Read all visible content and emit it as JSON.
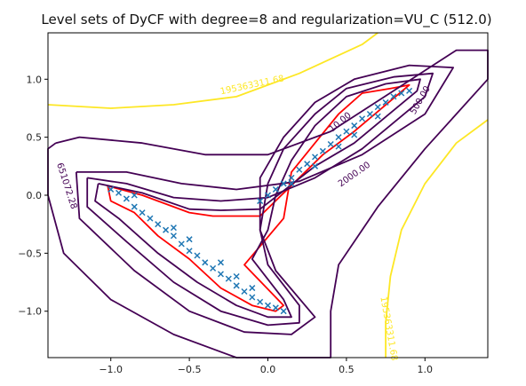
{
  "chart_data": {
    "type": "scatter",
    "title": "Level sets of DyCF with degree=8 and regularization=VU_C (512.0)",
    "xlabel": "",
    "ylabel": "",
    "xlim": [
      -1.4,
      1.4
    ],
    "ylim": [
      -1.4,
      1.4
    ],
    "x_ticks": [
      "−1.0",
      "−0.5",
      "0.0",
      "0.5",
      "1.0"
    ],
    "y_ticks": [
      "1.0",
      "0.5",
      "0.0",
      "−0.5",
      "−1.0"
    ],
    "grid": false,
    "legend": "none",
    "scatter": {
      "marker": "x",
      "color": "#1f77b4",
      "description": "dense cloud of points along a boomerang shape: lower arm from (-1.0, 0.05) to (0.1, -1.0), upper arm from (0.0, 0.0) to (0.9, 0.9)",
      "points": [
        [
          -1.0,
          0.05
        ],
        [
          -0.95,
          0.02
        ],
        [
          -0.9,
          -0.03
        ],
        [
          -0.85,
          -0.1
        ],
        [
          -0.8,
          -0.15
        ],
        [
          -0.75,
          -0.2
        ],
        [
          -0.7,
          -0.25
        ],
        [
          -0.65,
          -0.3
        ],
        [
          -0.6,
          -0.35
        ],
        [
          -0.55,
          -0.42
        ],
        [
          -0.5,
          -0.48
        ],
        [
          -0.45,
          -0.52
        ],
        [
          -0.4,
          -0.58
        ],
        [
          -0.35,
          -0.63
        ],
        [
          -0.3,
          -0.68
        ],
        [
          -0.25,
          -0.72
        ],
        [
          -0.2,
          -0.78
        ],
        [
          -0.15,
          -0.83
        ],
        [
          -0.1,
          -0.88
        ],
        [
          -0.05,
          -0.92
        ],
        [
          0.0,
          -0.95
        ],
        [
          0.05,
          -0.97
        ],
        [
          0.1,
          -1.0
        ],
        [
          -0.85,
          0.0
        ],
        [
          -0.6,
          -0.28
        ],
        [
          -0.5,
          -0.38
        ],
        [
          -0.3,
          -0.58
        ],
        [
          -0.2,
          -0.7
        ],
        [
          -0.1,
          -0.8
        ],
        [
          0.0,
          0.0
        ],
        [
          0.05,
          0.05
        ],
        [
          0.1,
          0.1
        ],
        [
          0.15,
          0.15
        ],
        [
          0.2,
          0.22
        ],
        [
          0.25,
          0.27
        ],
        [
          0.3,
          0.33
        ],
        [
          0.35,
          0.38
        ],
        [
          0.4,
          0.44
        ],
        [
          0.45,
          0.5
        ],
        [
          0.5,
          0.55
        ],
        [
          0.55,
          0.6
        ],
        [
          0.6,
          0.66
        ],
        [
          0.65,
          0.7
        ],
        [
          0.7,
          0.76
        ],
        [
          0.75,
          0.8
        ],
        [
          0.8,
          0.85
        ],
        [
          0.85,
          0.88
        ],
        [
          0.9,
          0.9
        ],
        [
          -0.05,
          -0.05
        ],
        [
          0.15,
          0.1
        ],
        [
          0.3,
          0.25
        ],
        [
          0.45,
          0.42
        ],
        [
          0.55,
          0.52
        ],
        [
          0.7,
          0.68
        ]
      ]
    },
    "contours": [
      {
        "level_label": "10.00",
        "color": "#ff0000",
        "path": [
          [
            -1.02,
            0.08
          ],
          [
            -0.8,
            0.0
          ],
          [
            -0.5,
            -0.15
          ],
          [
            -0.35,
            -0.18
          ],
          [
            -0.05,
            -0.18
          ],
          [
            0.35,
            0.35
          ],
          [
            0.55,
            0.55
          ],
          [
            0.9,
            0.95
          ],
          [
            0.78,
            0.92
          ],
          [
            0.6,
            0.88
          ],
          [
            0.45,
            0.7
          ],
          [
            0.3,
            0.45
          ],
          [
            0.15,
            0.2
          ],
          [
            0.1,
            -0.2
          ],
          [
            -0.15,
            -0.6
          ],
          [
            0.1,
            -0.95
          ],
          [
            0.05,
            -1.0
          ],
          [
            -0.1,
            -0.95
          ],
          [
            -0.3,
            -0.8
          ],
          [
            -0.5,
            -0.55
          ],
          [
            -0.7,
            -0.35
          ],
          [
            -0.85,
            -0.15
          ],
          [
            -1.0,
            -0.05
          ],
          [
            -1.02,
            0.08
          ]
        ]
      },
      {
        "level_label": "500.00",
        "color": "#440154",
        "path": [
          [
            -1.08,
            0.1
          ],
          [
            -0.8,
            0.02
          ],
          [
            -0.5,
            -0.12
          ],
          [
            -0.3,
            -0.13
          ],
          [
            -0.05,
            -0.12
          ],
          [
            0.3,
            0.25
          ],
          [
            0.55,
            0.45
          ],
          [
            0.95,
            0.9
          ],
          [
            0.97,
            1.0
          ],
          [
            0.75,
            0.96
          ],
          [
            0.5,
            0.85
          ],
          [
            0.3,
            0.6
          ],
          [
            0.15,
            0.3
          ],
          [
            0.05,
            0.0
          ],
          [
            0.0,
            -0.3
          ],
          [
            -0.1,
            -0.55
          ],
          [
            0.1,
            -0.9
          ],
          [
            0.15,
            -1.05
          ],
          [
            0.0,
            -1.05
          ],
          [
            -0.2,
            -0.95
          ],
          [
            -0.45,
            -0.75
          ],
          [
            -0.7,
            -0.5
          ],
          [
            -0.95,
            -0.2
          ],
          [
            -1.1,
            -0.05
          ],
          [
            -1.08,
            0.1
          ]
        ]
      },
      {
        "level_label": "2000.00",
        "color": "#440154",
        "path": [
          [
            -1.15,
            0.15
          ],
          [
            -0.9,
            0.1
          ],
          [
            -0.6,
            -0.02
          ],
          [
            -0.3,
            -0.05
          ],
          [
            0.0,
            -0.02
          ],
          [
            0.3,
            0.15
          ],
          [
            0.6,
            0.4
          ],
          [
            1.0,
            0.85
          ],
          [
            1.05,
            1.05
          ],
          [
            0.8,
            1.02
          ],
          [
            0.5,
            0.92
          ],
          [
            0.3,
            0.7
          ],
          [
            0.1,
            0.4
          ],
          [
            0.0,
            0.1
          ],
          [
            -0.05,
            -0.3
          ],
          [
            0.0,
            -0.6
          ],
          [
            0.2,
            -0.95
          ],
          [
            0.2,
            -1.1
          ],
          [
            0.0,
            -1.12
          ],
          [
            -0.3,
            -1.0
          ],
          [
            -0.6,
            -0.75
          ],
          [
            -0.9,
            -0.4
          ],
          [
            -1.15,
            -0.1
          ],
          [
            -1.15,
            0.15
          ]
        ]
      },
      {
        "level_label": "",
        "color": "#440154",
        "path": [
          [
            -1.22,
            0.2
          ],
          [
            -0.9,
            0.2
          ],
          [
            -0.55,
            0.1
          ],
          [
            -0.2,
            0.05
          ],
          [
            0.2,
            0.12
          ],
          [
            0.6,
            0.35
          ],
          [
            1.0,
            0.7
          ],
          [
            1.18,
            1.1
          ],
          [
            0.9,
            1.12
          ],
          [
            0.55,
            1.0
          ],
          [
            0.3,
            0.8
          ],
          [
            0.1,
            0.5
          ],
          [
            -0.05,
            0.15
          ],
          [
            -0.05,
            -0.3
          ],
          [
            0.05,
            -0.65
          ],
          [
            0.3,
            -1.05
          ],
          [
            0.15,
            -1.2
          ],
          [
            -0.15,
            -1.18
          ],
          [
            -0.5,
            -1.0
          ],
          [
            -0.85,
            -0.65
          ],
          [
            -1.2,
            -0.2
          ],
          [
            -1.22,
            0.2
          ]
        ]
      },
      {
        "level_label": "651072.28",
        "color": "#440154",
        "path": [
          [
            -1.35,
            0.45
          ],
          [
            -1.2,
            0.5
          ],
          [
            -0.8,
            0.45
          ],
          [
            -0.4,
            0.35
          ],
          [
            0.0,
            0.35
          ],
          [
            0.4,
            0.55
          ],
          [
            0.8,
            0.9
          ],
          [
            1.2,
            1.25
          ],
          [
            1.4,
            1.25
          ],
          [
            1.4,
            1.0
          ],
          [
            1.0,
            0.4
          ],
          [
            0.7,
            -0.1
          ],
          [
            0.45,
            -0.6
          ],
          [
            0.4,
            -1.0
          ],
          [
            0.4,
            -1.4
          ],
          [
            -0.2,
            -1.4
          ],
          [
            -0.6,
            -1.2
          ],
          [
            -1.0,
            -0.9
          ],
          [
            -1.3,
            -0.5
          ],
          [
            -1.4,
            0.0
          ],
          [
            -1.4,
            0.4
          ],
          [
            -1.35,
            0.45
          ]
        ]
      },
      {
        "level_label": "195363311.68",
        "color": "#fde725",
        "path": [
          [
            -1.4,
            0.78
          ],
          [
            -1.0,
            0.75
          ],
          [
            -0.6,
            0.78
          ],
          [
            -0.2,
            0.85
          ],
          [
            0.2,
            1.05
          ],
          [
            0.6,
            1.3
          ],
          [
            0.7,
            1.4
          ]
        ]
      },
      {
        "level_label": "195363311.68",
        "color": "#fde725",
        "path": [
          [
            1.4,
            0.65
          ],
          [
            1.2,
            0.45
          ],
          [
            1.0,
            0.1
          ],
          [
            0.85,
            -0.3
          ],
          [
            0.78,
            -0.7
          ],
          [
            0.75,
            -1.1
          ],
          [
            0.75,
            -1.4
          ]
        ]
      }
    ],
    "contour_labels": [
      {
        "text": "10.00",
        "x": 0.46,
        "y": 0.63,
        "angle": -40,
        "color": "#440154"
      },
      {
        "text": "500.00",
        "x": 0.97,
        "y": 0.82,
        "angle": -60,
        "color": "#440154"
      },
      {
        "text": "2000.00",
        "x": 0.55,
        "y": 0.18,
        "angle": -35,
        "color": "#440154"
      },
      {
        "text": "651072.28",
        "x": -1.28,
        "y": 0.08,
        "angle": 72,
        "color": "#440154"
      },
      {
        "text": "195363311.68",
        "x": -0.1,
        "y": 0.95,
        "angle": -12,
        "color": "#fde725"
      },
      {
        "text": "195363311.68",
        "x": 0.77,
        "y": -1.15,
        "angle": 80,
        "color": "#fde725"
      }
    ]
  }
}
